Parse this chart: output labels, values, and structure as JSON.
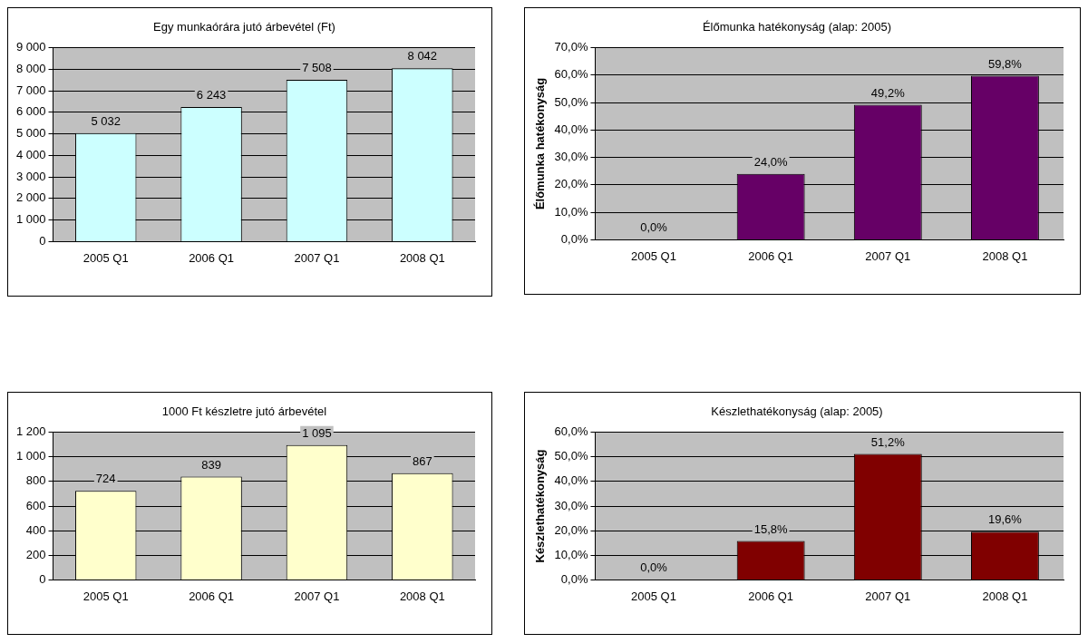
{
  "chart_data": [
    {
      "type": "bar",
      "title": "Egy munkaórára jutó árbevétel (Ft)",
      "categories": [
        "2005 Q1",
        "2006 Q1",
        "2007 Q1",
        "2008 Q1"
      ],
      "values": [
        5032,
        6243,
        7508,
        8042
      ],
      "color": "#ccffff",
      "value_labels": [
        "5 032",
        "6 243",
        "7 508",
        "8 042"
      ],
      "ylim": [
        0,
        9000
      ],
      "yticks": [
        {
          "value": 0,
          "label": "0"
        },
        {
          "value": 1000,
          "label": "1 000"
        },
        {
          "value": 2000,
          "label": "2 000"
        },
        {
          "value": 3000,
          "label": "3 000"
        },
        {
          "value": 4000,
          "label": "4 000"
        },
        {
          "value": 5000,
          "label": "5 000"
        },
        {
          "value": 6000,
          "label": "6 000"
        },
        {
          "value": 7000,
          "label": "7 000"
        },
        {
          "value": 8000,
          "label": "8 000"
        },
        {
          "value": 9000,
          "label": "9 000"
        }
      ],
      "grid": "y",
      "legend": false
    },
    {
      "type": "bar",
      "title": "Élőmunka hatékonyság (alap: 2005)",
      "ylabel": "Élőmunka hatékonyság",
      "categories": [
        "2005 Q1",
        "2006 Q1",
        "2007 Q1",
        "2008 Q1"
      ],
      "values": [
        0,
        24.0,
        49.2,
        59.8
      ],
      "color": "#660066",
      "value_labels": [
        "0,0%",
        "24,0%",
        "49,2%",
        "59,8%"
      ],
      "ylim": [
        0,
        70
      ],
      "yticks": [
        {
          "value": 0,
          "label": "0,0%"
        },
        {
          "value": 10,
          "label": "10,0%"
        },
        {
          "value": 20,
          "label": "20,0%"
        },
        {
          "value": 30,
          "label": "30,0%"
        },
        {
          "value": 40,
          "label": "40,0%"
        },
        {
          "value": 50,
          "label": "50,0%"
        },
        {
          "value": 60,
          "label": "60,0%"
        },
        {
          "value": 70,
          "label": "70,0%"
        }
      ],
      "grid": "y",
      "legend": false
    },
    {
      "type": "bar",
      "title": "1000 Ft készletre jutó árbevétel",
      "categories": [
        "2005 Q1",
        "2006 Q1",
        "2007 Q1",
        "2008 Q1"
      ],
      "values": [
        724,
        839,
        1095,
        867
      ],
      "color": "#ffffcc",
      "value_labels": [
        "724",
        "839",
        "1 095",
        "867"
      ],
      "ylim": [
        0,
        1200
      ],
      "yticks": [
        {
          "value": 0,
          "label": "0"
        },
        {
          "value": 200,
          "label": "200"
        },
        {
          "value": 400,
          "label": "400"
        },
        {
          "value": 600,
          "label": "600"
        },
        {
          "value": 800,
          "label": "800"
        },
        {
          "value": 1000,
          "label": "1 000"
        },
        {
          "value": 1200,
          "label": "1 200"
        }
      ],
      "grid": "y",
      "legend": false
    },
    {
      "type": "bar",
      "title": "Készlethatékonyság (alap: 2005)",
      "ylabel": "Készlethatékonyság",
      "categories": [
        "2005 Q1",
        "2006 Q1",
        "2007 Q1",
        "2008 Q1"
      ],
      "values": [
        0,
        15.8,
        51.2,
        19.6
      ],
      "color": "#800000",
      "value_labels": [
        "0,0%",
        "15,8%",
        "51,2%",
        "19,6%"
      ],
      "ylim": [
        0,
        60
      ],
      "yticks": [
        {
          "value": 0,
          "label": "0,0%"
        },
        {
          "value": 10,
          "label": "10,0%"
        },
        {
          "value": 20,
          "label": "20,0%"
        },
        {
          "value": 30,
          "label": "30,0%"
        },
        {
          "value": 40,
          "label": "40,0%"
        },
        {
          "value": 50,
          "label": "50,0%"
        },
        {
          "value": 60,
          "label": "60,0%"
        }
      ],
      "grid": "y",
      "legend": false
    }
  ]
}
